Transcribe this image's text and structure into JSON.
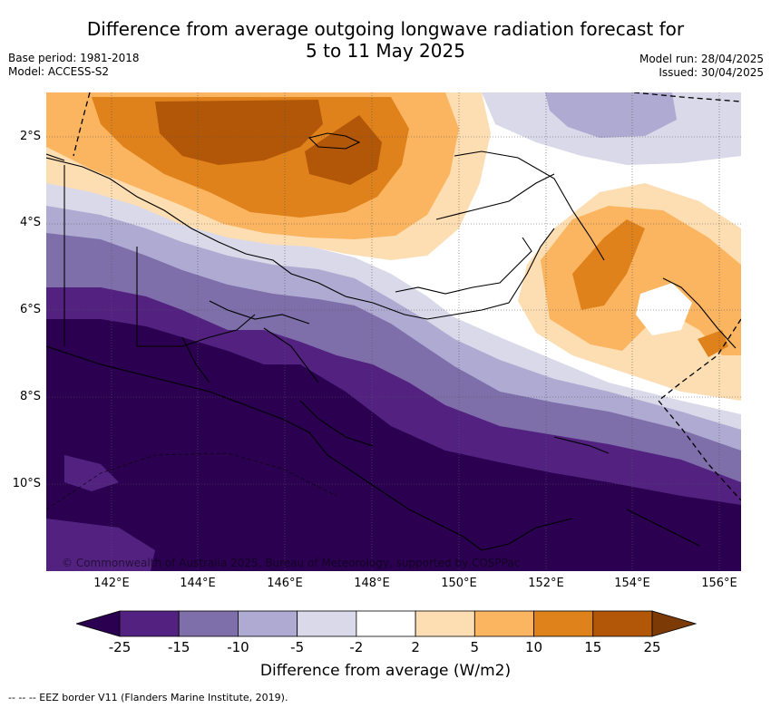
{
  "header": {
    "title_line1": "Difference from average outgoing longwave radiation forecast for",
    "title_line2": "5 to 11 May 2025",
    "base_period": "Base period: 1981-2018",
    "model": "Model: ACCESS-S2",
    "model_run": "Model run: 28/04/2025",
    "issued": "Issued: 30/04/2025"
  },
  "axes": {
    "lat_labels": [
      "2°S",
      "4°S",
      "6°S",
      "8°S",
      "10°S"
    ],
    "lon_labels": [
      "142°E",
      "144°E",
      "146°E",
      "148°E",
      "150°E",
      "152°E",
      "154°E",
      "156°E"
    ]
  },
  "colorbar": {
    "ticks": [
      "-25",
      "-15",
      "-10",
      "-5",
      "-2",
      "2",
      "5",
      "10",
      "15",
      "25"
    ],
    "colors": [
      "#2b0050",
      "#532281",
      "#7e6eaa",
      "#aeaad1",
      "#d9d9ea",
      "#ffffff",
      "#fddeb3",
      "#fbb560",
      "#e0821b",
      "#b25608",
      "#7c3b06"
    ],
    "label": "Difference from average (W/m2)"
  },
  "copyright": "© Commonwealth of Australia 2025, Bureau of Meteorology, supported by COSPPac",
  "footer": "-- -- -- EEZ border V11 (Flanders Marine Institute, 2019)."
}
